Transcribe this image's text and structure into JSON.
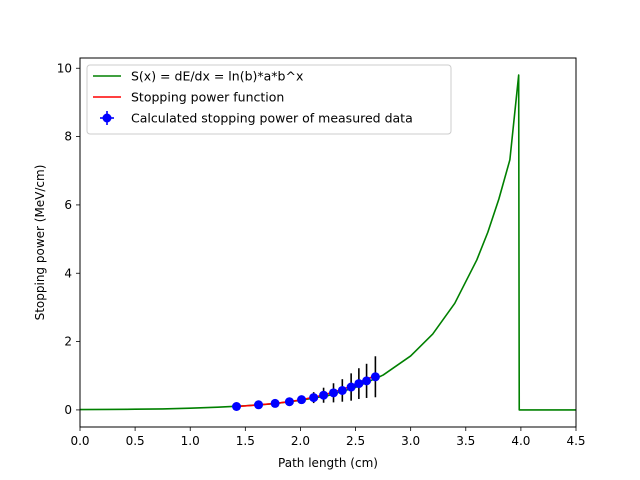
{
  "chart_data": {
    "type": "line",
    "title": "",
    "xlabel": "Path length (cm)",
    "ylabel": "Stopping power (MeV/cm)",
    "xlim": [
      0,
      4.5
    ],
    "ylim": [
      -0.5,
      10.3
    ],
    "xticks": [
      "0.0",
      "0.5",
      "1.0",
      "1.5",
      "2.0",
      "2.5",
      "3.0",
      "3.5",
      "4.0",
      "4.5"
    ],
    "yticks": [
      "0",
      "2",
      "4",
      "6",
      "8",
      "10"
    ],
    "grid": false,
    "legend_position": "top-left",
    "series": [
      {
        "name": "S(x) = dE/dx = ln(b)*a*b^x",
        "color": "#008000",
        "style": "line",
        "x": [
          0.0,
          0.25,
          0.5,
          0.75,
          1.0,
          1.25,
          1.5,
          1.75,
          2.0,
          2.25,
          2.5,
          2.75,
          3.0,
          3.2,
          3.4,
          3.6,
          3.7,
          3.8,
          3.9,
          3.98,
          3.985,
          4.5
        ],
        "y": [
          0.01,
          0.014,
          0.02,
          0.03,
          0.05,
          0.08,
          0.12,
          0.18,
          0.28,
          0.42,
          0.66,
          1.02,
          1.58,
          2.22,
          3.12,
          4.39,
          5.2,
          6.17,
          7.32,
          9.8,
          0.0,
          0.0
        ]
      },
      {
        "name": "Stopping power function",
        "color": "#ff0000",
        "style": "line",
        "x": [
          1.42,
          1.6,
          1.8,
          2.0,
          2.2,
          2.4,
          2.6,
          2.68
        ],
        "y": [
          0.1,
          0.14,
          0.2,
          0.29,
          0.43,
          0.62,
          0.9,
          1.0
        ]
      },
      {
        "name": "Calculated stopping power of measured data",
        "color": "#0000ff",
        "style": "errorbar",
        "errorbar_color": "#000000",
        "x": [
          1.42,
          1.62,
          1.77,
          1.9,
          2.01,
          2.12,
          2.21,
          2.3,
          2.38,
          2.46,
          2.53,
          2.6,
          2.68
        ],
        "y": [
          0.1,
          0.15,
          0.19,
          0.24,
          0.3,
          0.36,
          0.43,
          0.5,
          0.57,
          0.67,
          0.77,
          0.85,
          0.97
        ],
        "yerr": [
          0.03,
          0.04,
          0.06,
          0.08,
          0.12,
          0.16,
          0.22,
          0.28,
          0.33,
          0.4,
          0.45,
          0.5,
          0.6
        ]
      }
    ]
  }
}
